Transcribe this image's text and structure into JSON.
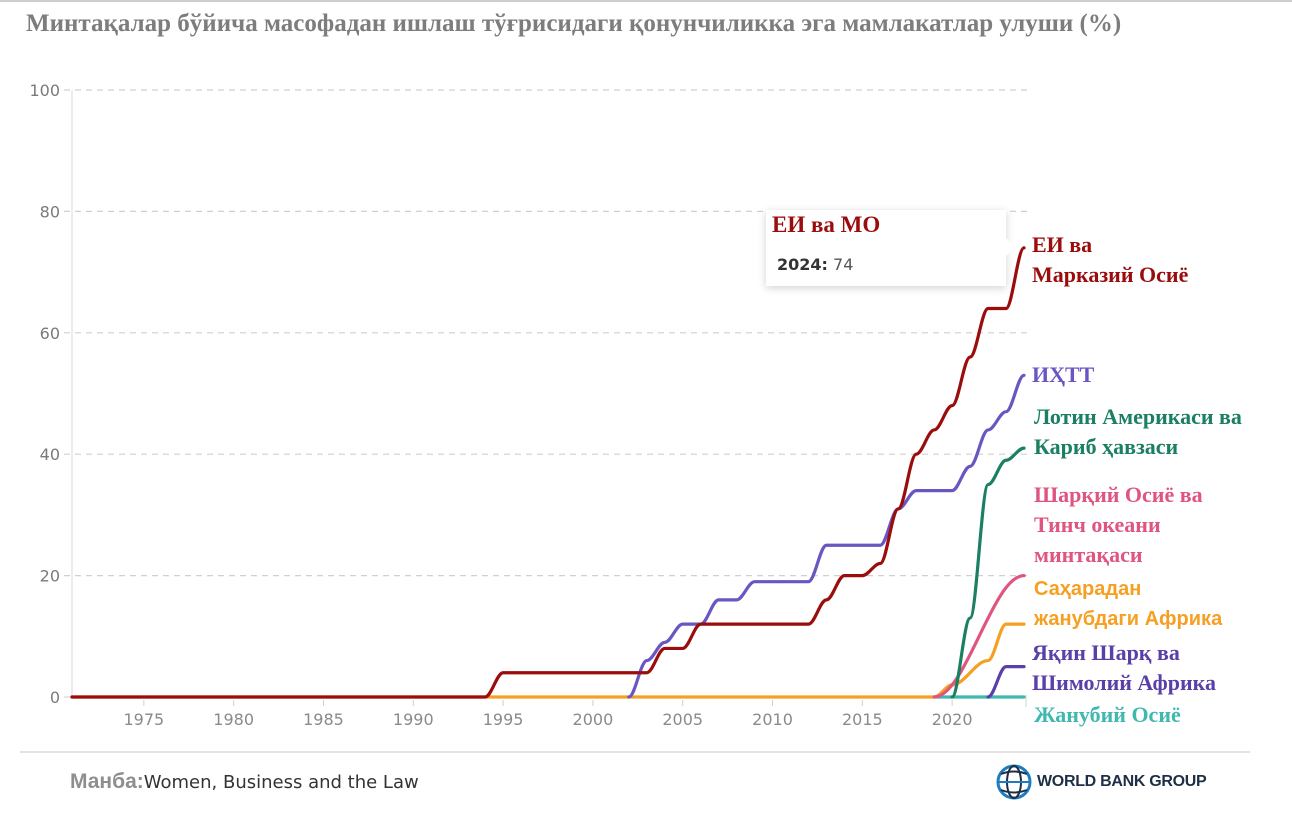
{
  "title": "Минтақалар бўйича масофадан ишлаш тўғрисидаги қонунчиликка эга мамлакатлар улуши (%)",
  "tooltip": {
    "series": "ЕИ ва МО",
    "year_label": "2024:",
    "value": "74"
  },
  "source": {
    "label": "Манба:",
    "text": "Women, Business and the Law"
  },
  "logo": {
    "text": "WORLD BANK GROUP",
    "icon": "globe-icon"
  },
  "chart_data": {
    "type": "line",
    "title": "Минтақалар бўйича масофадан ишлаш тўғрисидаги қонунчиликка эга мамлакатлар улуши (%)",
    "xlabel": "",
    "ylabel": "",
    "xlim": [
      1971,
      2024
    ],
    "ylim": [
      0,
      100
    ],
    "yticks": [
      0,
      20,
      40,
      60,
      80,
      100
    ],
    "xticks": [
      1975,
      1980,
      1985,
      1990,
      1995,
      2000,
      2005,
      2010,
      2015,
      2020
    ],
    "grid": true,
    "legend": "direct labels at line ends (right)",
    "series": [
      {
        "name": "ЕИ ва Марказий Осиё",
        "short": "ЕИ ва МО",
        "label_lines": [
          "ЕИ ва",
          "Марказий Осиё"
        ],
        "color": "#9b0d0d",
        "points": [
          [
            1971,
            0
          ],
          [
            1994,
            0
          ],
          [
            1995,
            4
          ],
          [
            2002,
            4
          ],
          [
            2003,
            4
          ],
          [
            2004,
            8
          ],
          [
            2005,
            8
          ],
          [
            2006,
            12
          ],
          [
            2012,
            12
          ],
          [
            2013,
            16
          ],
          [
            2014,
            20
          ],
          [
            2015,
            20
          ],
          [
            2016,
            22
          ],
          [
            2017,
            31
          ],
          [
            2018,
            40
          ],
          [
            2019,
            44
          ],
          [
            2020,
            48
          ],
          [
            2021,
            56
          ],
          [
            2022,
            64
          ],
          [
            2023,
            64
          ],
          [
            2024,
            74
          ]
        ]
      },
      {
        "name": "ИҲТТ",
        "label_lines": [
          "ИҲТТ"
        ],
        "color": "#6a55c2",
        "points": [
          [
            2002,
            0
          ],
          [
            2003,
            6
          ],
          [
            2004,
            9
          ],
          [
            2005,
            12
          ],
          [
            2006,
            12
          ],
          [
            2007,
            16
          ],
          [
            2008,
            16
          ],
          [
            2009,
            19
          ],
          [
            2012,
            19
          ],
          [
            2013,
            25
          ],
          [
            2016,
            25
          ],
          [
            2017,
            31
          ],
          [
            2018,
            34
          ],
          [
            2020,
            34
          ],
          [
            2021,
            38
          ],
          [
            2022,
            44
          ],
          [
            2023,
            47
          ],
          [
            2024,
            53
          ]
        ]
      },
      {
        "name": "Лотин Америкаси ва Кариб ҳавзаси",
        "label_lines": [
          "Лотин Америкаси ва",
          "Кариб ҳавзаси"
        ],
        "color": "#1a7f63",
        "points": [
          [
            2020,
            0
          ],
          [
            2021,
            13
          ],
          [
            2022,
            35
          ],
          [
            2023,
            39
          ],
          [
            2024,
            41
          ]
        ]
      },
      {
        "name": "Шарқий Осиё ва Тинч океани минтақаси",
        "label_lines": [
          "Шарқий Осиё ва",
          "Тинч океани",
          "минтақаси"
        ],
        "color": "#e0557f",
        "points": [
          [
            2019,
            0
          ],
          [
            2024,
            20
          ]
        ]
      },
      {
        "name": "Саҳарадан жанубдаги Африка",
        "label_lines": [
          "Саҳарадан",
          "жанубдаги Африка"
        ],
        "color": "#f5a022",
        "points": [
          [
            1971,
            0
          ],
          [
            2019,
            0
          ],
          [
            2020,
            2
          ],
          [
            2022,
            6
          ],
          [
            2023,
            12
          ],
          [
            2024,
            12
          ]
        ]
      },
      {
        "name": "Яқин Шарқ ва Шимолий Африка",
        "label_lines": [
          "Яқин Шарқ ва",
          "Шимолий Африка"
        ],
        "color": "#5b3fa8",
        "points": [
          [
            2022,
            0
          ],
          [
            2023,
            5
          ],
          [
            2024,
            5
          ]
        ]
      },
      {
        "name": "Жанубий Осиё",
        "label_lines": [
          "Жанубий Осиё"
        ],
        "color": "#3fb8b0",
        "points": [
          [
            2019,
            0
          ],
          [
            2024,
            0
          ]
        ]
      }
    ]
  }
}
